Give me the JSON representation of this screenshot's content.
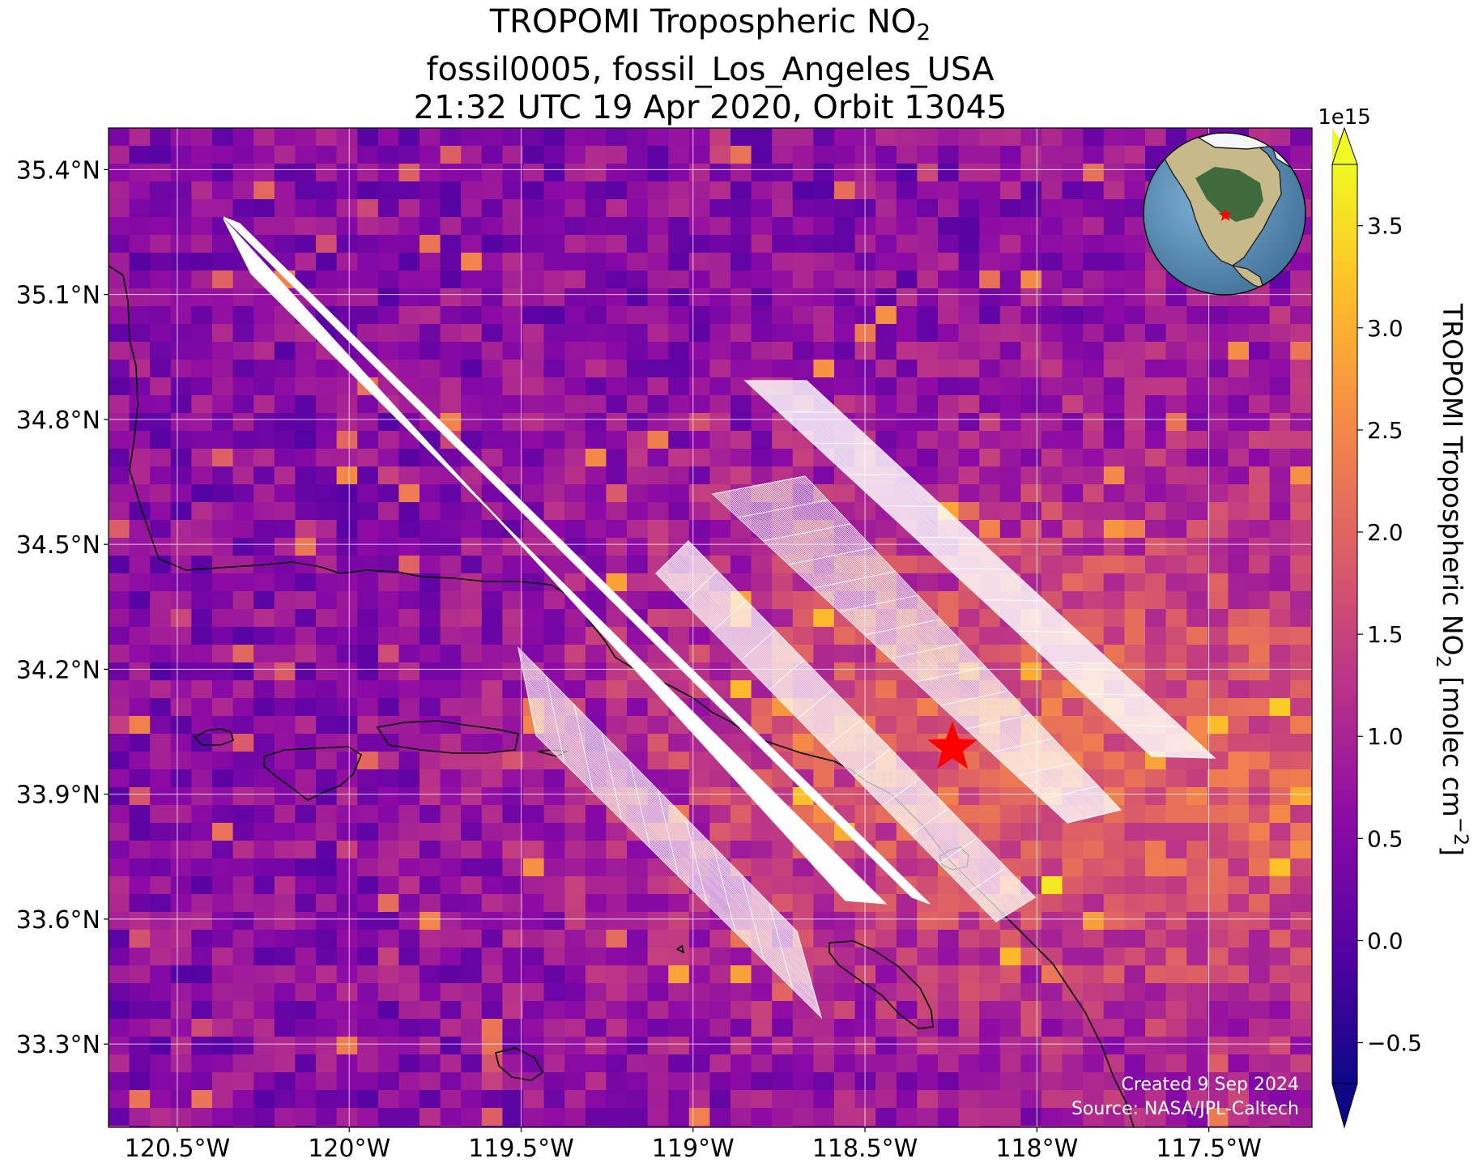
{
  "title": {
    "line1_main": "TROPOMI Tropospheric NO",
    "line1_sub": "2",
    "line2": "fossil0005, fossil_Los_Angeles_USA",
    "line3": "21:32 UTC 19 Apr 2020, Orbit 13045"
  },
  "map": {
    "lat_ticks": [
      {
        "value": 35.4,
        "label": "35.4°N"
      },
      {
        "value": 35.1,
        "label": "35.1°N"
      },
      {
        "value": 34.8,
        "label": "34.8°N"
      },
      {
        "value": 34.5,
        "label": "34.5°N"
      },
      {
        "value": 34.2,
        "label": "34.2°N"
      },
      {
        "value": 33.9,
        "label": "33.9°N"
      },
      {
        "value": 33.6,
        "label": "33.6°N"
      },
      {
        "value": 33.3,
        "label": "33.3°N"
      }
    ],
    "lon_ticks": [
      {
        "value": -120.5,
        "label": "120.5°W"
      },
      {
        "value": -120.0,
        "label": "120°W"
      },
      {
        "value": -119.5,
        "label": "119.5°W"
      },
      {
        "value": -119.0,
        "label": "119°W"
      },
      {
        "value": -118.5,
        "label": "118.5°W"
      },
      {
        "value": -118.0,
        "label": "118°W"
      },
      {
        "value": -117.5,
        "label": "117.5°W"
      }
    ],
    "extent": {
      "lon_min": -120.7,
      "lon_max": -117.2,
      "lat_min": 33.1,
      "lat_max": 35.5
    },
    "target": {
      "lat": 34.05,
      "lon": -118.25,
      "marker": "red-star",
      "color": "#ff0000"
    },
    "credit_line1": "Created 9 Sep 2024",
    "credit_line2": "Source: NASA/JPL-Caltech",
    "inset": "globe-icon"
  },
  "colorbar": {
    "label_main": "TROPOMI Tropospheric NO",
    "label_sub": "2",
    "label_units": " [molec cm",
    "label_exp": "−2",
    "label_close": "]",
    "exponent": "1e15",
    "ticks": [
      {
        "value": 3.5,
        "label": "3.5"
      },
      {
        "value": 3.0,
        "label": "3.0"
      },
      {
        "value": 2.5,
        "label": "2.5"
      },
      {
        "value": 2.0,
        "label": "2.0"
      },
      {
        "value": 1.5,
        "label": "1.5"
      },
      {
        "value": 1.0,
        "label": "1.0"
      },
      {
        "value": 0.5,
        "label": "0.5"
      },
      {
        "value": 0.0,
        "label": "0.0"
      },
      {
        "value": -0.5,
        "label": "−0.5"
      }
    ],
    "vmin": -0.7,
    "vmax": 3.8,
    "extend": "both",
    "colormap": "plasma",
    "colors": [
      "#0d0887",
      "#5302a3",
      "#8b0aa5",
      "#b83289",
      "#db5c68",
      "#f48849",
      "#febc2a",
      "#f0f921"
    ]
  }
}
